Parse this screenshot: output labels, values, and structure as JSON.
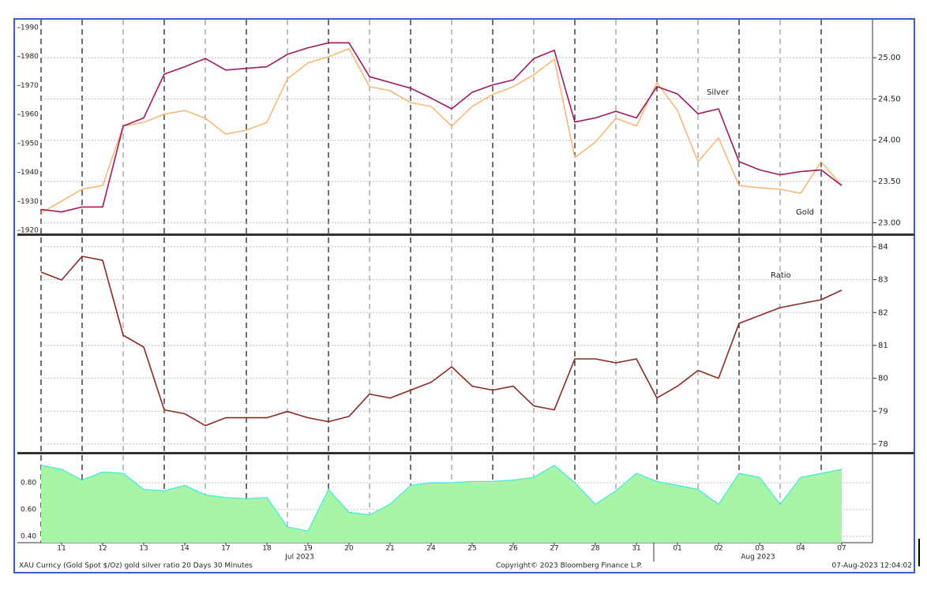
{
  "chart_data": [
    {
      "type": "line",
      "x": [
        -0.5,
        0,
        0.5,
        1,
        1.5,
        2,
        2.5,
        3,
        3.5,
        4,
        4.5,
        5,
        5.5,
        6,
        6.5,
        7,
        7.5,
        8,
        8.5,
        9,
        9.5,
        10,
        10.5,
        11,
        11.5,
        12,
        12.5,
        13,
        13.5,
        14,
        14.5,
        15,
        15.5,
        16,
        16.5,
        17,
        17.5,
        18,
        18.5,
        19
      ],
      "series": [
        {
          "name": "Gold",
          "color": "#f8b878",
          "axis": "y",
          "values": [
            1926.0,
            1930.1,
            1934.2,
            1935.5,
            1956.0,
            1957.3,
            1960.1,
            1961.4,
            1958.7,
            1953.2,
            1954.6,
            1957.3,
            1972.3,
            1977.8,
            1979.9,
            1982.7,
            1969.6,
            1968.2,
            1964.1,
            1962.8,
            1956.0,
            1962.8,
            1966.9,
            1969.6,
            1973.7,
            1979.1,
            1945.1,
            1950.5,
            1958.7,
            1956.0,
            1971.0,
            1961.4,
            1943.7,
            1951.9,
            1935.5,
            1934.7,
            1934.2,
            1932.8,
            1943.7,
            1935.5
          ]
        },
        {
          "name": "Silver",
          "color": "#a0185e",
          "axis": "y2",
          "values": [
            23.16,
            23.13,
            23.19,
            23.19,
            24.17,
            24.27,
            24.8,
            24.89,
            24.99,
            24.85,
            24.87,
            24.89,
            25.04,
            25.12,
            25.18,
            25.18,
            24.77,
            24.7,
            24.63,
            24.51,
            24.38,
            24.58,
            24.67,
            24.73,
            24.99,
            25.09,
            24.22,
            24.27,
            24.35,
            24.27,
            24.65,
            24.56,
            24.32,
            24.38,
            23.74,
            23.64,
            23.58,
            23.62,
            23.64,
            23.45
          ]
        }
      ],
      "ylim": [
        1918.4,
        1992.7
      ],
      "yticks": [
        1920,
        1930,
        1940,
        1950,
        1960,
        1970,
        1980,
        1990
      ],
      "y2lim": [
        22.85,
        25.46
      ],
      "y2ticks": [
        {
          "value": 23,
          "label": "23.00"
        },
        {
          "value": 23.5,
          "label": "23.50"
        },
        {
          "value": 24,
          "label": "24.00"
        },
        {
          "value": 24.5,
          "label": "24.50"
        },
        {
          "value": 25,
          "label": "25.00"
        }
      ],
      "grid": true
    },
    {
      "type": "line",
      "x": [
        -0.5,
        0,
        0.5,
        1,
        1.5,
        2,
        2.5,
        3,
        3.5,
        4,
        4.5,
        5,
        5.5,
        6,
        6.5,
        7,
        7.5,
        8,
        8.5,
        9,
        9.5,
        10,
        10.5,
        11,
        11.5,
        12,
        12.5,
        13,
        13.5,
        14,
        14.5,
        15,
        15.5,
        16,
        16.5,
        17,
        17.5,
        18,
        18.5,
        19
      ],
      "series": [
        {
          "name": "Ratio",
          "color": "#8b2a22",
          "axis": "y2",
          "values": [
            83.23,
            82.99,
            83.71,
            83.59,
            81.31,
            80.95,
            79.04,
            78.92,
            78.56,
            78.8,
            78.8,
            78.8,
            78.99,
            78.8,
            78.68,
            78.84,
            79.52,
            79.4,
            79.64,
            79.88,
            80.35,
            79.76,
            79.64,
            79.76,
            79.16,
            79.04,
            80.59,
            80.59,
            80.47,
            80.59,
            79.4,
            79.76,
            80.24,
            80.0,
            81.67,
            81.91,
            82.15,
            82.27,
            82.39,
            82.68
          ]
        }
      ],
      "y2lim": [
        77.71,
        84.31
      ],
      "y2ticks": [
        78,
        79,
        80,
        81,
        82,
        83,
        84
      ],
      "grid": true
    },
    {
      "type": "area",
      "color": "#a8f5a8",
      "line_color": "#40e8e0",
      "x": [
        -0.5,
        0,
        0.5,
        1,
        1.5,
        2,
        2.5,
        3,
        3.5,
        4,
        4.5,
        5,
        5.5,
        6,
        6.5,
        7,
        7.5,
        8,
        8.5,
        9,
        9.5,
        10,
        10.5,
        11,
        11.5,
        12,
        12.5,
        13,
        13.5,
        14,
        14.5,
        15,
        15.5,
        16,
        16.5,
        17,
        17.5,
        18,
        18.5,
        19
      ],
      "values": [
        0.93,
        0.9,
        0.82,
        0.88,
        0.87,
        0.75,
        0.74,
        0.78,
        0.71,
        0.69,
        0.68,
        0.69,
        0.47,
        0.44,
        0.75,
        0.58,
        0.56,
        0.64,
        0.78,
        0.8,
        0.8,
        0.81,
        0.81,
        0.82,
        0.84,
        0.93,
        0.8,
        0.64,
        0.74,
        0.87,
        0.81,
        0.78,
        0.75,
        0.64,
        0.87,
        0.84,
        0.64,
        0.84,
        0.87,
        0.9
      ],
      "ylim": [
        0.353,
        1.006
      ],
      "yticks": [
        {
          "value": 0.4,
          "label": "0.40"
        },
        {
          "value": 0.6,
          "label": "0.60"
        },
        {
          "value": 0.8,
          "label": "0.80"
        }
      ],
      "grid": true,
      "xlim": [
        -0.5,
        19.75
      ],
      "xticks": [
        {
          "value": 0,
          "label": "11"
        },
        {
          "value": 1,
          "label": "12"
        },
        {
          "value": 2,
          "label": "13"
        },
        {
          "value": 3,
          "label": "14"
        },
        {
          "value": 4,
          "label": "17"
        },
        {
          "value": 5,
          "label": "18"
        },
        {
          "value": 6,
          "label": "19"
        },
        {
          "value": 7,
          "label": "20"
        },
        {
          "value": 8,
          "label": "21"
        },
        {
          "value": 9,
          "label": "24"
        },
        {
          "value": 10,
          "label": "25"
        },
        {
          "value": 11,
          "label": "26"
        },
        {
          "value": 12,
          "label": "27"
        },
        {
          "value": 13,
          "label": "28"
        },
        {
          "value": 14,
          "label": "31"
        },
        {
          "value": 15,
          "label": "01"
        },
        {
          "value": 16,
          "label": "02"
        },
        {
          "value": 17,
          "label": "03"
        },
        {
          "value": 18,
          "label": "04"
        },
        {
          "value": 19,
          "label": "07"
        }
      ],
      "month_labels": [
        {
          "value": 5.8,
          "label": "Jul 2023"
        },
        {
          "value": 16.96,
          "label": "Aug 2023"
        }
      ]
    }
  ],
  "footer": {
    "left": "XAU Curncy (Gold Spot  $/Oz) gold silver ratio 20 Days 30 Minutes",
    "center": "Copyright© 2023 Bloomberg Finance L.P.",
    "right": "07-Aug-2023 12:04:02"
  }
}
